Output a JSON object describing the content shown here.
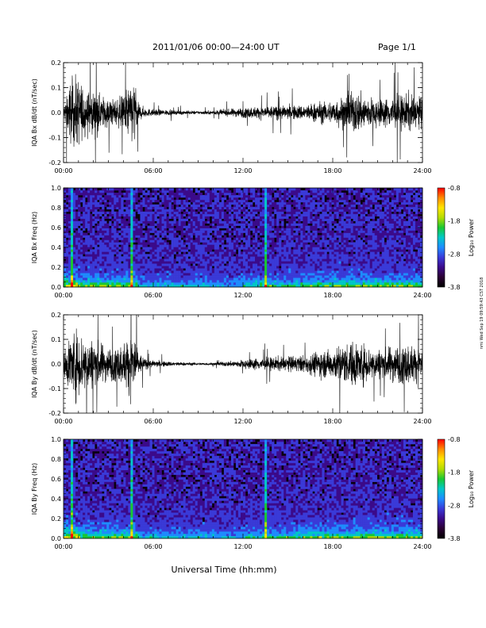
{
  "header": {
    "title": "2011/01/06  00:00—24:00 UT",
    "page": "Page 1/1"
  },
  "footer": {
    "xlabel": "Universal Time (hh:mm)",
    "side_stamp": "nmi Wed Sep 19 09:59:43 CST 2018"
  },
  "colors": {
    "trace": "#000000",
    "spectrogram_scale": [
      "#000000",
      "#2a0033",
      "#3b0a8a",
      "#3a3ad8",
      "#1e8cff",
      "#00c8c8",
      "#19c832",
      "#b4dc00",
      "#ffe600",
      "#ff8c00",
      "#ff0000"
    ]
  },
  "chart_data": [
    {
      "type": "line",
      "panel": "bx_timeseries",
      "ylabel": "IQA Bx dB/dt (nT/sec)",
      "ylim": [
        -0.2,
        0.2
      ],
      "yticks": [
        "-0.2",
        "-0.1",
        "0.0",
        "0.1",
        "0.2"
      ],
      "xlim": [
        "00:00",
        "24:00"
      ],
      "xticks": [
        "00:00",
        "06:00",
        "12:00",
        "18:00",
        "24:00"
      ],
      "envelope": {
        "hour": [
          0,
          0.25,
          0.5,
          0.75,
          1,
          1.5,
          2,
          2.5,
          3,
          3.5,
          4,
          4.25,
          4.5,
          4.75,
          5,
          5.5,
          6,
          7,
          8,
          9,
          10,
          11,
          12,
          13,
          14,
          15,
          16,
          16.5,
          17,
          17.5,
          18,
          18.5,
          19,
          19.5,
          20,
          20.5,
          21,
          21.5,
          22,
          22.5,
          23,
          23.5,
          24
        ],
        "amplitude": [
          0.04,
          0.11,
          0.2,
          0.2,
          0.2,
          0.13,
          0.12,
          0.1,
          0.08,
          0.08,
          0.1,
          0.15,
          0.17,
          0.2,
          0.05,
          0.025,
          0.02,
          0.015,
          0.012,
          0.01,
          0.012,
          0.02,
          0.03,
          0.035,
          0.04,
          0.04,
          0.045,
          0.05,
          0.065,
          0.06,
          0.07,
          0.09,
          0.1,
          0.12,
          0.11,
          0.09,
          0.08,
          0.08,
          0.1,
          0.1,
          0.11,
          0.1,
          0.09
        ]
      }
    },
    {
      "type": "heatmap",
      "panel": "bx_spectrogram",
      "ylabel": "IQA Bx Freq (Hz)",
      "ylim": [
        0.0,
        1.0
      ],
      "yticks": [
        "0.0",
        "0.2",
        "0.4",
        "0.6",
        "0.8",
        "1.0"
      ],
      "xlim": [
        "00:00",
        "24:00"
      ],
      "xticks": [
        "00:00",
        "06:00",
        "12:00",
        "18:00",
        "24:00"
      ],
      "colorbar": {
        "label": "Log₁₀ Power",
        "range": [
          -3.8,
          -0.8
        ],
        "ticks": [
          "-0.8",
          "-1.8",
          "-2.8",
          "-3.8"
        ]
      },
      "bright_lines_hour": [
        0.6,
        4.5,
        13.5
      ],
      "low_freq_band_hz": 0.1
    },
    {
      "type": "line",
      "panel": "by_timeseries",
      "ylabel": "IQA By dB/dt (nT/sec)",
      "ylim": [
        -0.2,
        0.2
      ],
      "yticks": [
        "-0.2",
        "-0.1",
        "0.0",
        "0.1",
        "0.2"
      ],
      "xlim": [
        "00:00",
        "24:00"
      ],
      "xticks": [
        "00:00",
        "06:00",
        "12:00",
        "18:00",
        "24:00"
      ],
      "envelope": {
        "hour": [
          0,
          0.25,
          0.5,
          0.75,
          1,
          1.5,
          2,
          2.5,
          3,
          3.5,
          4,
          4.25,
          4.5,
          4.75,
          5,
          5.5,
          6,
          7,
          8,
          9,
          10,
          11,
          12,
          13,
          14,
          15,
          16,
          16.5,
          17,
          17.5,
          18,
          18.5,
          19,
          19.5,
          20,
          20.5,
          21,
          21.5,
          22,
          22.5,
          23,
          23.5,
          24
        ],
        "amplitude": [
          0.06,
          0.13,
          0.2,
          0.2,
          0.2,
          0.17,
          0.14,
          0.12,
          0.1,
          0.1,
          0.12,
          0.16,
          0.18,
          0.2,
          0.07,
          0.03,
          0.02,
          0.015,
          0.01,
          0.008,
          0.008,
          0.015,
          0.025,
          0.035,
          0.04,
          0.045,
          0.05,
          0.06,
          0.08,
          0.08,
          0.09,
          0.11,
          0.12,
          0.14,
          0.12,
          0.1,
          0.09,
          0.09,
          0.11,
          0.11,
          0.12,
          0.11,
          0.1
        ]
      }
    },
    {
      "type": "heatmap",
      "panel": "by_spectrogram",
      "ylabel": "IQA By Freq (Hz)",
      "ylim": [
        0.0,
        1.0
      ],
      "yticks": [
        "0.0",
        "0.2",
        "0.4",
        "0.6",
        "0.8",
        "1.0"
      ],
      "xlim": [
        "00:00",
        "24:00"
      ],
      "xticks": [
        "00:00",
        "06:00",
        "12:00",
        "18:00",
        "24:00"
      ],
      "colorbar": {
        "label": "Log₁₀ Power",
        "range": [
          -3.8,
          -0.8
        ],
        "ticks": [
          "-0.8",
          "-1.8",
          "-2.8",
          "-3.8"
        ]
      },
      "bright_lines_hour": [
        0.6,
        4.5,
        13.5
      ],
      "low_freq_band_hz": 0.1
    }
  ]
}
